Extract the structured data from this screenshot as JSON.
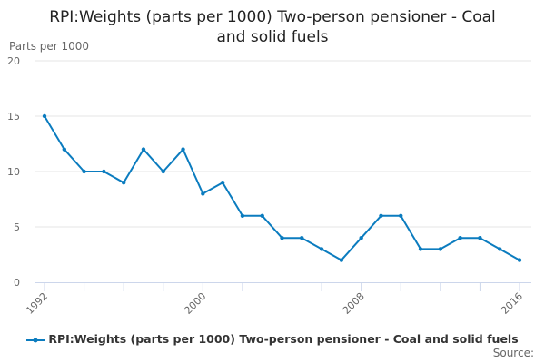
{
  "chart_data": {
    "type": "line",
    "title": "RPI:Weights (parts per 1000) Two-person pensioner - Coal and solid fuels",
    "ylabel": "Parts per 1000",
    "xlabel": "",
    "ylim": [
      0,
      20
    ],
    "yticks": [
      0,
      5,
      10,
      15,
      20
    ],
    "xtick_labels": [
      "1992",
      "2000",
      "2008",
      "2016"
    ],
    "x": [
      1992,
      1993,
      1994,
      1995,
      1996,
      1997,
      1998,
      1999,
      2000,
      2001,
      2002,
      2003,
      2004,
      2005,
      2006,
      2007,
      2008,
      2009,
      2010,
      2011,
      2012,
      2013,
      2014,
      2015,
      2016
    ],
    "series": [
      {
        "name": "RPI:Weights (parts per 1000) Two-person pensioner - Coal and solid fuels",
        "color": "#0b7cbf",
        "values": [
          15,
          12,
          10,
          10,
          9,
          12,
          10,
          12,
          8,
          9,
          6,
          6,
          4,
          4,
          3,
          2,
          4,
          6,
          6,
          3,
          3,
          4,
          4,
          3,
          2
        ]
      }
    ],
    "grid": true,
    "legend": "bottom"
  },
  "title_lines": [
    "RPI:Weights (parts per 1000) Two-person pensioner - Coal",
    "and solid fuels"
  ],
  "source_label": "Source:"
}
